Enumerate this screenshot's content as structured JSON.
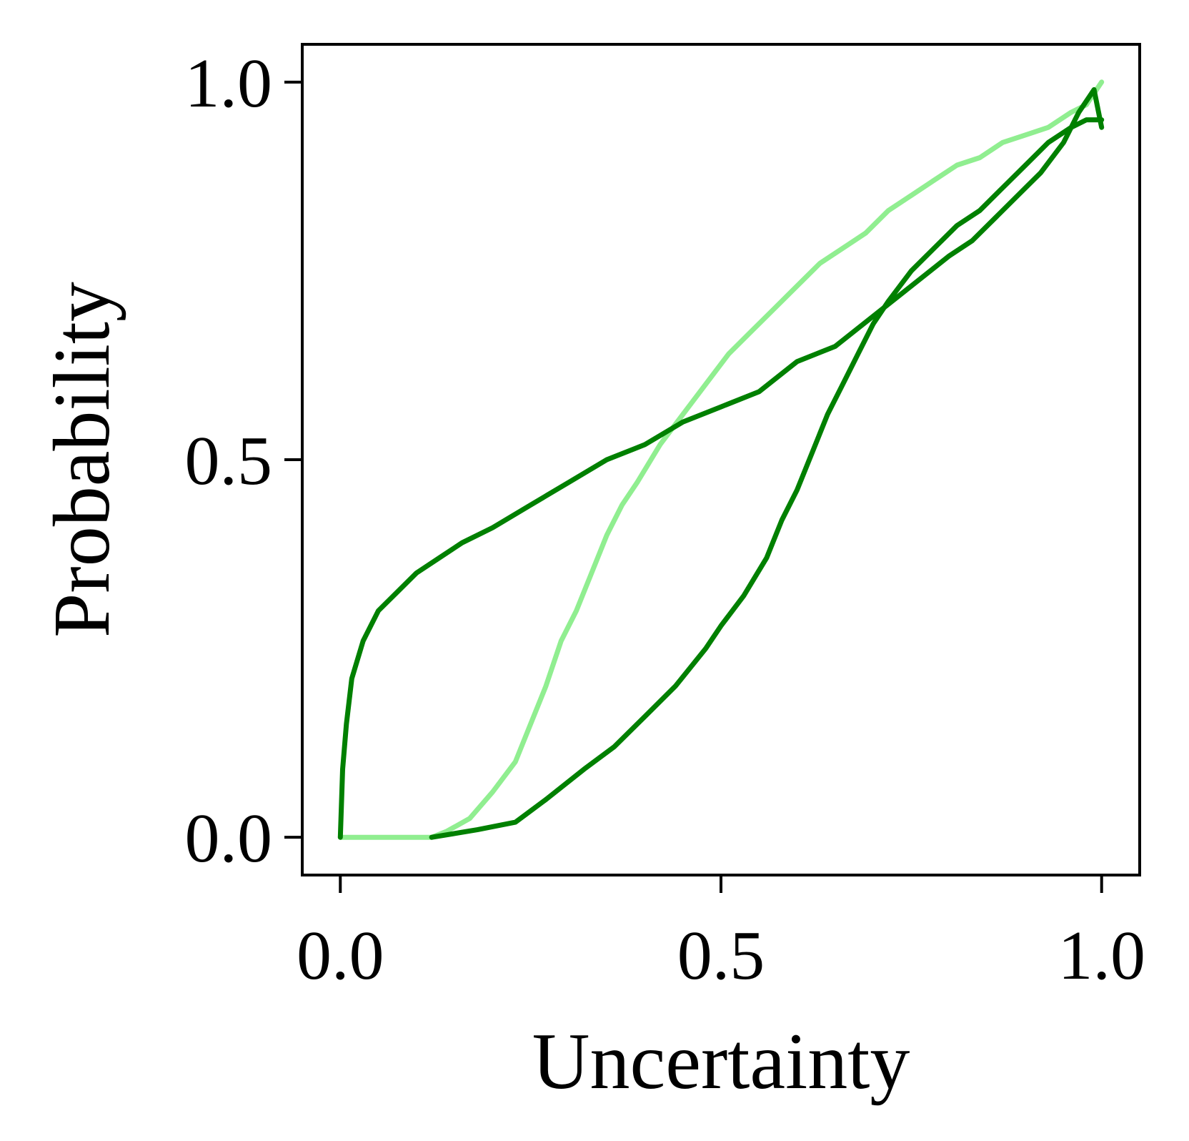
{
  "chart_data": {
    "type": "line",
    "xlabel": "Uncertainty",
    "ylabel": "Probability",
    "xlim": [
      -0.05,
      1.05
    ],
    "ylim": [
      -0.05,
      1.05
    ],
    "x_ticks": [
      0.0,
      0.5,
      1.0
    ],
    "y_ticks": [
      0.0,
      0.5,
      1.0
    ],
    "x_tick_labels": [
      "0.0",
      "0.5",
      "1.0"
    ],
    "y_tick_labels": [
      "0.0",
      "0.5",
      "1.0"
    ],
    "grid": false,
    "legend": "none",
    "series": [
      {
        "color": "#90ee90",
        "points": [
          [
            0.0,
            0.0
          ],
          [
            0.12,
            0.0
          ],
          [
            0.14,
            0.008
          ],
          [
            0.17,
            0.025
          ],
          [
            0.2,
            0.06
          ],
          [
            0.23,
            0.1
          ],
          [
            0.25,
            0.15
          ],
          [
            0.27,
            0.2
          ],
          [
            0.29,
            0.26
          ],
          [
            0.31,
            0.3
          ],
          [
            0.33,
            0.35
          ],
          [
            0.35,
            0.4
          ],
          [
            0.37,
            0.44
          ],
          [
            0.39,
            0.47
          ],
          [
            0.42,
            0.52
          ],
          [
            0.45,
            0.56
          ],
          [
            0.48,
            0.6
          ],
          [
            0.51,
            0.64
          ],
          [
            0.54,
            0.67
          ],
          [
            0.57,
            0.7
          ],
          [
            0.6,
            0.73
          ],
          [
            0.63,
            0.76
          ],
          [
            0.66,
            0.78
          ],
          [
            0.69,
            0.8
          ],
          [
            0.72,
            0.83
          ],
          [
            0.75,
            0.85
          ],
          [
            0.78,
            0.87
          ],
          [
            0.81,
            0.89
          ],
          [
            0.84,
            0.9
          ],
          [
            0.87,
            0.92
          ],
          [
            0.9,
            0.93
          ],
          [
            0.93,
            0.94
          ],
          [
            0.96,
            0.96
          ],
          [
            0.98,
            0.97
          ],
          [
            1.0,
            1.0
          ]
        ]
      },
      {
        "color": "#008000",
        "points": [
          [
            0.0,
            0.0
          ],
          [
            0.003,
            0.09
          ],
          [
            0.008,
            0.15
          ],
          [
            0.015,
            0.21
          ],
          [
            0.03,
            0.26
          ],
          [
            0.05,
            0.3
          ],
          [
            0.07,
            0.32
          ],
          [
            0.1,
            0.35
          ],
          [
            0.13,
            0.37
          ],
          [
            0.16,
            0.39
          ],
          [
            0.2,
            0.41
          ],
          [
            0.25,
            0.44
          ],
          [
            0.3,
            0.47
          ],
          [
            0.35,
            0.5
          ],
          [
            0.4,
            0.52
          ],
          [
            0.45,
            0.55
          ],
          [
            0.5,
            0.57
          ],
          [
            0.55,
            0.59
          ],
          [
            0.6,
            0.63
          ],
          [
            0.65,
            0.65
          ],
          [
            0.7,
            0.69
          ],
          [
            0.75,
            0.73
          ],
          [
            0.8,
            0.77
          ],
          [
            0.83,
            0.79
          ],
          [
            0.86,
            0.82
          ],
          [
            0.89,
            0.85
          ],
          [
            0.92,
            0.88
          ],
          [
            0.95,
            0.92
          ],
          [
            0.97,
            0.96
          ],
          [
            0.99,
            0.99
          ],
          [
            1.0,
            0.94
          ]
        ]
      },
      {
        "color": "#008000",
        "points": [
          [
            0.12,
            0.0
          ],
          [
            0.18,
            0.01
          ],
          [
            0.23,
            0.02
          ],
          [
            0.27,
            0.05
          ],
          [
            0.32,
            0.09
          ],
          [
            0.36,
            0.12
          ],
          [
            0.4,
            0.16
          ],
          [
            0.44,
            0.2
          ],
          [
            0.48,
            0.25
          ],
          [
            0.5,
            0.28
          ],
          [
            0.53,
            0.32
          ],
          [
            0.56,
            0.37
          ],
          [
            0.58,
            0.42
          ],
          [
            0.6,
            0.46
          ],
          [
            0.62,
            0.51
          ],
          [
            0.64,
            0.56
          ],
          [
            0.66,
            0.6
          ],
          [
            0.68,
            0.64
          ],
          [
            0.7,
            0.68
          ],
          [
            0.72,
            0.71
          ],
          [
            0.75,
            0.75
          ],
          [
            0.78,
            0.78
          ],
          [
            0.81,
            0.81
          ],
          [
            0.84,
            0.83
          ],
          [
            0.87,
            0.86
          ],
          [
            0.9,
            0.89
          ],
          [
            0.93,
            0.92
          ],
          [
            0.96,
            0.94
          ],
          [
            0.98,
            0.95
          ],
          [
            1.0,
            0.95
          ]
        ]
      }
    ]
  }
}
